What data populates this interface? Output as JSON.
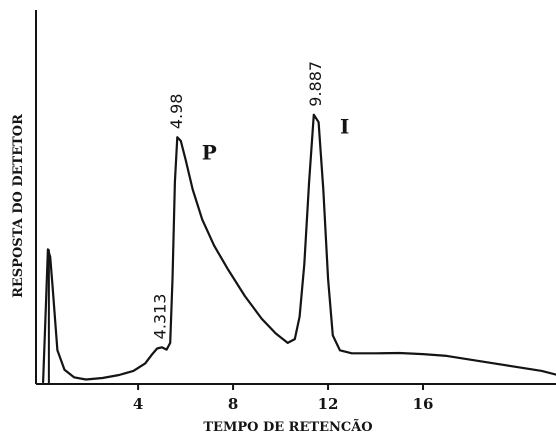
{
  "chart_data": {
    "type": "line",
    "xlabel": "TEMPO DE RETENCÃO",
    "ylabel": "RESPOSTA DO DETETOR",
    "xlim": [
      -0.3,
      21.6
    ],
    "ylim": [
      0,
      100
    ],
    "x_ticks": [
      4,
      8,
      12,
      16
    ],
    "x_tick_labels": [
      "4",
      "8",
      "12",
      "16"
    ],
    "grid": false,
    "series": [
      {
        "x": [
          0.0,
          0.1,
          0.2,
          0.3,
          0.4,
          0.6,
          0.9,
          1.3,
          1.8,
          2.5,
          3.2,
          3.8,
          4.3,
          4.6,
          4.8,
          5.0,
          5.2,
          5.35,
          5.45,
          5.55,
          5.65,
          5.8,
          6.0,
          6.3,
          6.7,
          7.2,
          7.8,
          8.5,
          9.2,
          9.8,
          10.3,
          10.6,
          10.8,
          11.0,
          11.2,
          11.4,
          11.6,
          11.8,
          12.0,
          12.2,
          12.5,
          13.0,
          14.0,
          15.0,
          16.0,
          17.0,
          18.0,
          19.0,
          20.0,
          21.0,
          21.6
        ],
        "y": [
          0.5,
          18.0,
          36.0,
          34.0,
          26.0,
          9.0,
          3.8,
          1.8,
          1.2,
          1.6,
          2.4,
          3.5,
          5.5,
          8.0,
          9.5,
          9.8,
          9.2,
          11.0,
          28.0,
          54.0,
          66.0,
          65.0,
          60.0,
          52.0,
          44.0,
          37.0,
          30.5,
          23.5,
          17.5,
          13.5,
          11.0,
          12.0,
          18.0,
          32.0,
          54.0,
          72.0,
          70.0,
          52.0,
          28.0,
          13.0,
          9.0,
          8.2,
          8.2,
          8.3,
          8.0,
          7.5,
          6.5,
          5.5,
          4.5,
          3.5,
          2.5
        ]
      }
    ],
    "annotations": [
      {
        "text": "4.313",
        "x": 4.9,
        "y": 9.8
      },
      {
        "text": "4.98",
        "x": 5.6,
        "y": 66.0
      },
      {
        "text": "9.887",
        "x": 11.45,
        "y": 72.0
      }
    ],
    "peak_letters": [
      {
        "text": "P",
        "x": 7.0,
        "y": 60.0
      },
      {
        "text": "I",
        "x": 12.7,
        "y": 67.0
      }
    ]
  }
}
